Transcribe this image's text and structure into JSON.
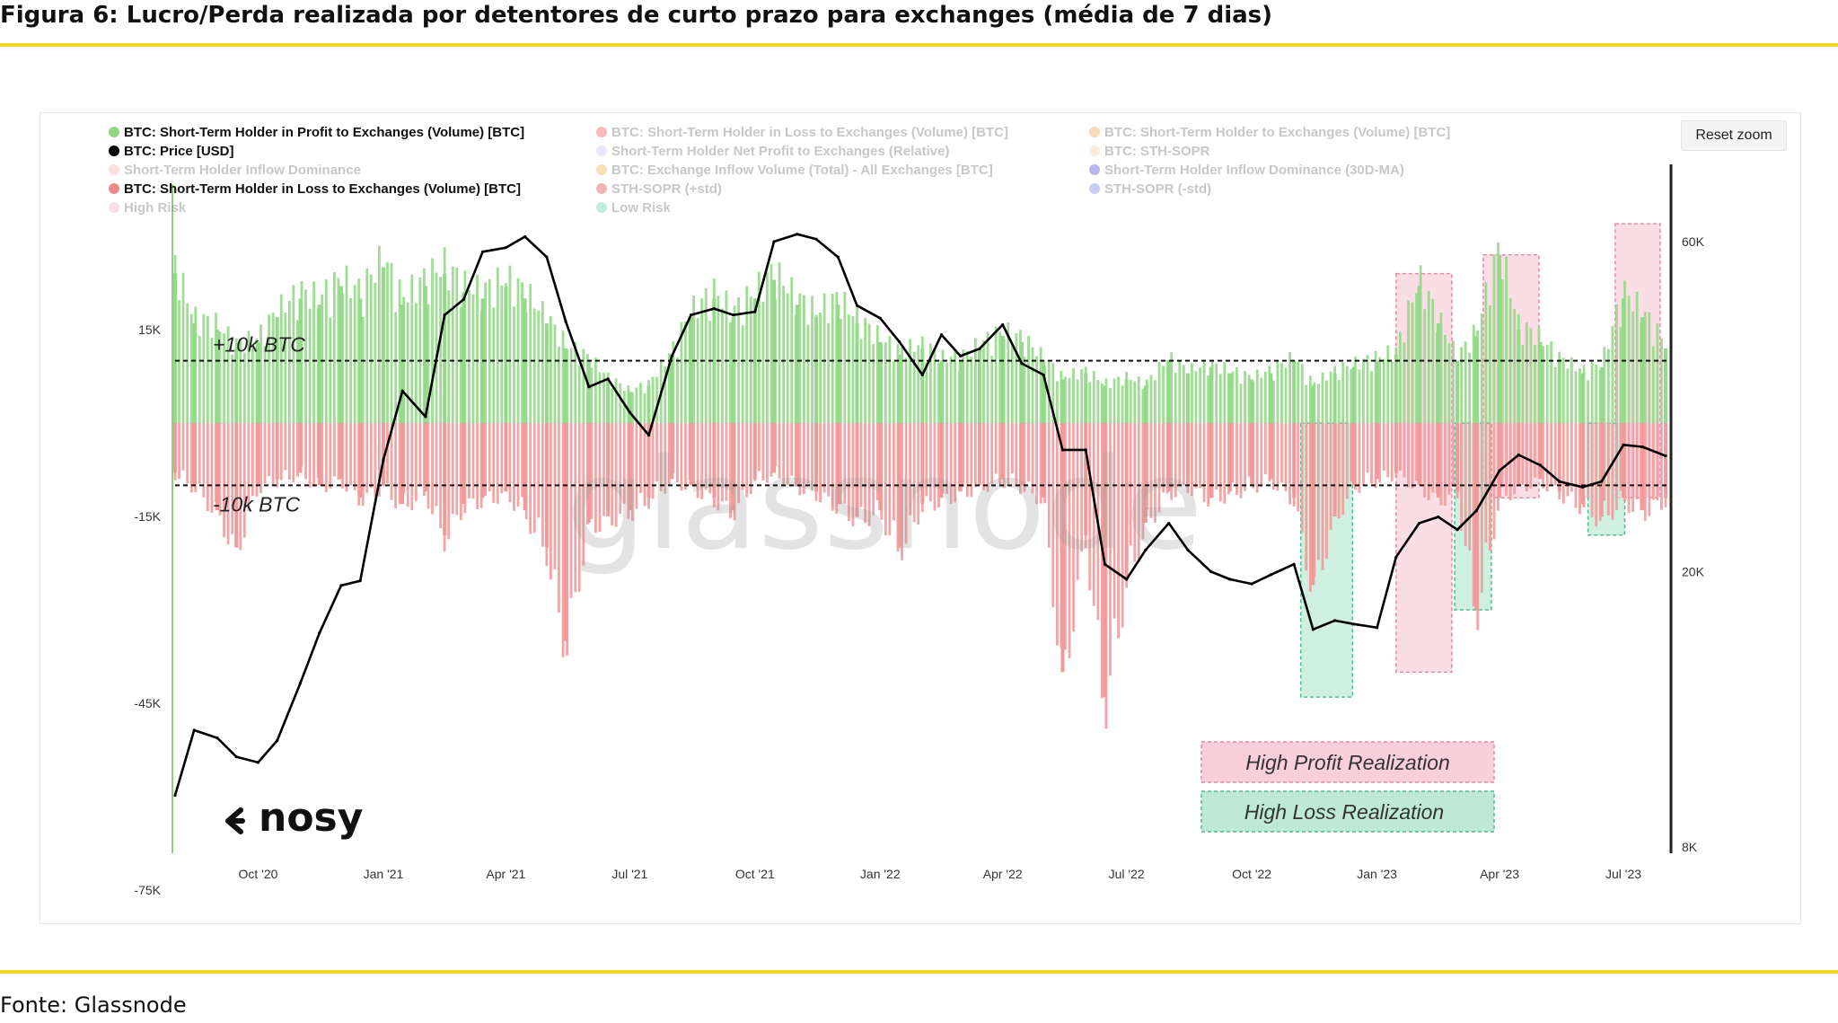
{
  "figure": {
    "title": "Figura 6: Lucro/Perda realizada por detentores de curto prazo para exchanges (média de 7 dias)",
    "source": "Fonte: Glassnode"
  },
  "controls": {
    "reset_zoom": "Reset zoom"
  },
  "watermark": "glassnode",
  "logo": "nosy",
  "chart_data": {
    "type": "bar",
    "title": "",
    "x_ticks": [
      "Oct '20",
      "Jan '21",
      "Apr '21",
      "Jul '21",
      "Oct '21",
      "Jan '22",
      "Apr '22",
      "Jul '22",
      "Oct '22",
      "Jan '23",
      "Apr '23",
      "Jul '23"
    ],
    "xlim": [
      "2020-08-01",
      "2023-08-01"
    ],
    "y_left": {
      "ticks": [
        "15K",
        "-15K",
        "-45K",
        "-75K"
      ],
      "range": [
        -75000,
        33000
      ]
    },
    "y_right": {
      "ticks": [
        "60K",
        "20K",
        "8K"
      ],
      "scale": "log",
      "range": [
        8000,
        65000
      ]
    },
    "grid": false,
    "legend_position": "top-left",
    "legend": [
      {
        "label": "BTC: Short-Term Holder in Profit to Exchanges (Volume) [BTC]",
        "color": "#90d77f",
        "active": true
      },
      {
        "label": "BTC: Short-Term Holder in Loss to Exchanges (Volume) [BTC]",
        "color": "#e8312c",
        "active": false
      },
      {
        "label": "BTC: Short-Term Holder to Exchanges (Volume) [BTC]",
        "color": "#f08a24",
        "active": false
      },
      {
        "label": "BTC: Price [USD]",
        "color": "#000000",
        "active": true
      },
      {
        "label": "Short-Term Holder Net Profit to Exchanges (Relative)",
        "color": "#b7b4f0",
        "active": false
      },
      {
        "label": "BTC: STH-SOPR",
        "color": "#f5c48c",
        "active": false
      },
      {
        "label": "Short-Term Holder Inflow Dominance",
        "color": "#f3a08e",
        "active": false
      },
      {
        "label": "BTC: Exchange Inflow Volume (Total) - All Exchanges [BTC]",
        "color": "#f29b1d",
        "active": false
      },
      {
        "label": "Short-Term Holder Inflow Dominance (30D-MA)",
        "color": "#2a22c9",
        "active": false
      },
      {
        "label": "BTC: Short-Term Holder in Loss to Exchanges (Volume) [BTC]",
        "color": "#f08a8a",
        "active": true
      },
      {
        "label": "STH-SOPR (+std)",
        "color": "#d11a1a",
        "active": false
      },
      {
        "label": "STH-SOPR (-std)",
        "color": "#4f6be6",
        "active": false
      },
      {
        "label": "High Risk",
        "color": "#f39bb0",
        "active": false
      },
      {
        "label": "Low Risk",
        "color": "#3fcf99",
        "active": false
      }
    ],
    "reference_lines": [
      {
        "label": "+10k BTC",
        "value": 10000
      },
      {
        "label": "-10k BTC",
        "value": -10000
      }
    ],
    "annotations": {
      "high_profit_label": "High Profit Realization",
      "high_loss_label": "High Loss Realization",
      "high_profit_color": "#f9cfdb",
      "high_loss_color": "#bfe9d7",
      "high_profit_windows": [
        {
          "start": "2023-01-15",
          "end": "2023-02-25",
          "y_from": -40000,
          "y_to": 24000
        },
        {
          "start": "2023-03-20",
          "end": "2023-04-30",
          "y_from": -12000,
          "y_to": 27000
        },
        {
          "start": "2023-06-25",
          "end": "2023-07-28",
          "y_from": -12000,
          "y_to": 32000
        }
      ],
      "high_loss_windows": [
        {
          "start": "2022-11-06",
          "end": "2022-12-14",
          "y_from": -44000,
          "y_to": 0
        },
        {
          "start": "2023-02-27",
          "end": "2023-03-26",
          "y_from": -30000,
          "y_to": 0
        },
        {
          "start": "2023-06-05",
          "end": "2023-07-02",
          "y_from": -18000,
          "y_to": 0
        }
      ]
    },
    "series": [
      {
        "name": "BTC: Short-Term Holder in Profit to Exchanges (Volume) [BTC]",
        "axis": "left",
        "color": "#95d98a",
        "x": [
          "2020-08-01",
          "2020-08-15",
          "2020-09-01",
          "2020-09-15",
          "2020-10-01",
          "2020-10-15",
          "2020-11-01",
          "2020-11-15",
          "2020-12-01",
          "2020-12-15",
          "2021-01-01",
          "2021-01-15",
          "2021-02-01",
          "2021-02-15",
          "2021-03-01",
          "2021-03-15",
          "2021-04-01",
          "2021-04-15",
          "2021-05-01",
          "2021-05-15",
          "2021-06-01",
          "2021-06-15",
          "2021-07-01",
          "2021-07-15",
          "2021-08-01",
          "2021-08-15",
          "2021-09-01",
          "2021-09-15",
          "2021-10-01",
          "2021-10-15",
          "2021-11-01",
          "2021-11-15",
          "2021-12-01",
          "2021-12-15",
          "2022-01-01",
          "2022-01-15",
          "2022-02-01",
          "2022-02-15",
          "2022-03-01",
          "2022-03-15",
          "2022-04-01",
          "2022-04-15",
          "2022-05-01",
          "2022-05-15",
          "2022-06-01",
          "2022-06-15",
          "2022-07-01",
          "2022-07-15",
          "2022-08-01",
          "2022-08-15",
          "2022-09-01",
          "2022-09-15",
          "2022-10-01",
          "2022-10-15",
          "2022-11-01",
          "2022-11-15",
          "2022-12-01",
          "2022-12-15",
          "2023-01-01",
          "2023-01-15",
          "2023-02-01",
          "2023-02-15",
          "2023-03-01",
          "2023-03-15",
          "2023-04-01",
          "2023-04-15",
          "2023-05-01",
          "2023-05-15",
          "2023-06-01",
          "2023-06-15",
          "2023-07-01",
          "2023-07-15",
          "2023-08-01"
        ],
        "values": [
          24000,
          16000,
          15000,
          12000,
          13000,
          17000,
          20000,
          19000,
          22000,
          20000,
          25000,
          19000,
          22000,
          24000,
          21000,
          20000,
          22000,
          20000,
          16000,
          12000,
          10000,
          7000,
          5000,
          6000,
          11000,
          17000,
          20000,
          17000,
          20000,
          23000,
          19000,
          17000,
          19000,
          16000,
          13000,
          11000,
          12000,
          10000,
          10000,
          12000,
          14000,
          13000,
          10000,
          7000,
          8000,
          6000,
          7000,
          6000,
          10000,
          8000,
          9000,
          8000,
          7000,
          8000,
          10000,
          6000,
          8000,
          9000,
          10000,
          11000,
          22000,
          16000,
          10000,
          14000,
          27000,
          15000,
          13000,
          10000,
          8000,
          9000,
          20000,
          17000,
          12000
        ]
      },
      {
        "name": "BTC: Short-Term Holder in Loss to Exchanges (Volume) [BTC]",
        "axis": "left",
        "color": "#f29a9a",
        "x": [
          "2020-08-01",
          "2020-08-15",
          "2020-09-01",
          "2020-09-15",
          "2020-10-01",
          "2020-10-15",
          "2020-11-01",
          "2020-11-15",
          "2020-12-01",
          "2020-12-15",
          "2021-01-01",
          "2021-01-15",
          "2021-02-01",
          "2021-02-15",
          "2021-03-01",
          "2021-03-15",
          "2021-04-01",
          "2021-04-15",
          "2021-05-01",
          "2021-05-15",
          "2021-06-01",
          "2021-06-15",
          "2021-07-01",
          "2021-07-15",
          "2021-08-01",
          "2021-08-15",
          "2021-09-01",
          "2021-09-15",
          "2021-10-01",
          "2021-10-15",
          "2021-11-01",
          "2021-11-15",
          "2021-12-01",
          "2021-12-15",
          "2022-01-01",
          "2022-01-15",
          "2022-02-01",
          "2022-02-15",
          "2022-03-01",
          "2022-03-15",
          "2022-04-01",
          "2022-04-15",
          "2022-05-01",
          "2022-05-15",
          "2022-06-01",
          "2022-06-15",
          "2022-07-01",
          "2022-07-15",
          "2022-08-01",
          "2022-08-15",
          "2022-09-01",
          "2022-09-15",
          "2022-10-01",
          "2022-10-15",
          "2022-11-01",
          "2022-11-15",
          "2022-12-01",
          "2022-12-15",
          "2023-01-01",
          "2023-01-15",
          "2023-02-01",
          "2023-02-15",
          "2023-03-01",
          "2023-03-15",
          "2023-04-01",
          "2023-04-15",
          "2023-05-01",
          "2023-05-15",
          "2023-06-01",
          "2023-06-15",
          "2023-07-01",
          "2023-07-15",
          "2023-08-01"
        ],
        "values": [
          -8000,
          -10000,
          -14000,
          -20000,
          -10000,
          -9000,
          -8000,
          -10000,
          -9000,
          -12000,
          -10000,
          -13000,
          -11000,
          -18000,
          -13000,
          -12000,
          -11000,
          -14000,
          -20000,
          -35000,
          -16000,
          -15000,
          -14000,
          -12000,
          -9000,
          -10000,
          -12000,
          -14000,
          -9000,
          -8000,
          -10000,
          -11000,
          -13000,
          -15000,
          -14000,
          -20000,
          -13000,
          -12000,
          -11000,
          -10000,
          -9000,
          -10000,
          -12000,
          -40000,
          -18000,
          -44000,
          -25000,
          -16000,
          -11000,
          -10000,
          -12000,
          -11000,
          -10000,
          -9000,
          -12000,
          -26000,
          -15000,
          -10000,
          -9000,
          -8000,
          -10000,
          -12000,
          -11000,
          -30000,
          -12000,
          -10000,
          -9000,
          -11000,
          -13000,
          -15000,
          -12000,
          -14000,
          -12000
        ]
      },
      {
        "name": "BTC: Price [USD]",
        "axis": "right",
        "color": "#000000",
        "x": [
          "2020-08-01",
          "2020-08-15",
          "2020-09-01",
          "2020-09-15",
          "2020-10-01",
          "2020-10-15",
          "2020-11-01",
          "2020-11-15",
          "2020-12-01",
          "2020-12-15",
          "2021-01-01",
          "2021-01-15",
          "2021-02-01",
          "2021-02-15",
          "2021-03-01",
          "2021-03-15",
          "2021-04-01",
          "2021-04-15",
          "2021-05-01",
          "2021-05-15",
          "2021-06-01",
          "2021-06-15",
          "2021-07-01",
          "2021-07-15",
          "2021-08-01",
          "2021-08-15",
          "2021-09-01",
          "2021-09-15",
          "2021-10-01",
          "2021-10-15",
          "2021-11-01",
          "2021-11-15",
          "2021-12-01",
          "2021-12-15",
          "2022-01-01",
          "2022-01-15",
          "2022-02-01",
          "2022-02-15",
          "2022-03-01",
          "2022-03-15",
          "2022-04-01",
          "2022-04-15",
          "2022-05-01",
          "2022-05-15",
          "2022-06-01",
          "2022-06-15",
          "2022-07-01",
          "2022-07-15",
          "2022-08-01",
          "2022-08-15",
          "2022-09-01",
          "2022-09-15",
          "2022-10-01",
          "2022-10-15",
          "2022-11-01",
          "2022-11-15",
          "2022-12-01",
          "2022-12-15",
          "2023-01-01",
          "2023-01-15",
          "2023-02-01",
          "2023-02-15",
          "2023-03-01",
          "2023-03-15",
          "2023-04-01",
          "2023-04-15",
          "2023-05-01",
          "2023-05-15",
          "2023-06-01",
          "2023-06-15",
          "2023-07-01",
          "2023-07-15",
          "2023-08-01"
        ],
        "values": [
          9500,
          11800,
          11500,
          10800,
          10600,
          11400,
          13800,
          16300,
          19100,
          19400,
          29000,
          36500,
          33500,
          47000,
          49500,
          58000,
          58800,
          61000,
          57000,
          46000,
          37000,
          38000,
          34000,
          31500,
          41000,
          47000,
          48000,
          47000,
          47500,
          60000,
          61500,
          60500,
          57000,
          48500,
          46500,
          43000,
          38500,
          44000,
          41000,
          42000,
          45500,
          40000,
          38500,
          30000,
          30000,
          20500,
          19500,
          21500,
          23500,
          21500,
          20000,
          19500,
          19200,
          19800,
          20500,
          16500,
          17000,
          16800,
          16600,
          21000,
          23500,
          24000,
          23000,
          24500,
          28000,
          29500,
          28500,
          27000,
          26500,
          27000,
          30500,
          30300,
          29400
        ]
      }
    ]
  }
}
